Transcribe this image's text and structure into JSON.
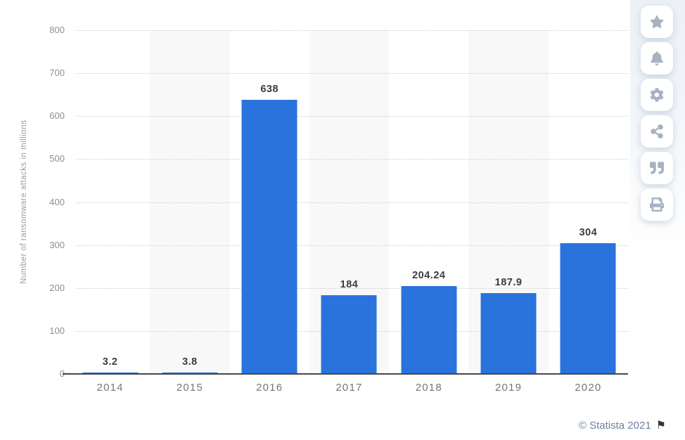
{
  "chart_data": {
    "type": "bar",
    "title": "",
    "categories": [
      "2014",
      "2015",
      "2016",
      "2017",
      "2018",
      "2019",
      "2020"
    ],
    "values": [
      3.2,
      3.8,
      638,
      184,
      204.24,
      187.9,
      304
    ],
    "value_labels": [
      "3.2",
      "3.8",
      "638",
      "184",
      "204.24",
      "187.9",
      "304"
    ],
    "xlabel": "",
    "ylabel": "Number of ransomware attacks in millions",
    "ylim": [
      0,
      800
    ],
    "yticks": [
      0,
      100,
      200,
      300,
      400,
      500,
      600,
      700,
      800
    ],
    "grid": true,
    "legend": "none",
    "bar_color": "#2a73dc",
    "stripe_color": "#f8f8f8"
  },
  "toolbar": {
    "icon_color": "#a7b2c3",
    "buttons": [
      {
        "name": "favorite-button",
        "icon": "star-icon"
      },
      {
        "name": "notifications-button",
        "icon": "bell-icon"
      },
      {
        "name": "settings-button",
        "icon": "gear-icon"
      },
      {
        "name": "share-button",
        "icon": "share-icon"
      },
      {
        "name": "cite-button",
        "icon": "quote-icon"
      },
      {
        "name": "print-button",
        "icon": "printer-icon"
      }
    ]
  },
  "footer": {
    "copyright": "© Statista 2021",
    "flag_icon": "flag-icon"
  }
}
